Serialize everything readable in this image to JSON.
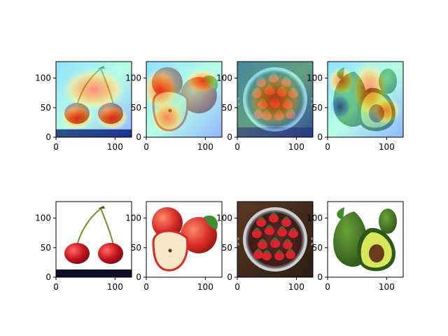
{
  "chart_data": {
    "type": "image-grid",
    "rows": 2,
    "cols": 4,
    "xlim": [
      0,
      128
    ],
    "ylim": [
      128,
      0
    ],
    "xticks": [
      0,
      100
    ],
    "yticks": [
      0,
      50,
      100
    ],
    "panels": [
      {
        "row": 0,
        "col": 0,
        "content": "cherries",
        "overlay": "heatmap"
      },
      {
        "row": 0,
        "col": 1,
        "content": "apples",
        "overlay": "heatmap"
      },
      {
        "row": 0,
        "col": 2,
        "content": "strawberries",
        "overlay": "heatmap"
      },
      {
        "row": 0,
        "col": 3,
        "content": "avocados",
        "overlay": "heatmap"
      },
      {
        "row": 1,
        "col": 0,
        "content": "cherries",
        "overlay": "none"
      },
      {
        "row": 1,
        "col": 1,
        "content": "apples",
        "overlay": "none"
      },
      {
        "row": 1,
        "col": 2,
        "content": "strawberries",
        "overlay": "none"
      },
      {
        "row": 1,
        "col": 3,
        "content": "avocados",
        "overlay": "none"
      }
    ]
  },
  "colors": {
    "heat_base": "#3a7bff",
    "heat_mid": "#00e0ff",
    "heat_warm": "#ffe14d",
    "heat_hot": "#ff3b1f",
    "cherry_red": "#c8141e",
    "stem": "#7a8a2a",
    "apple_red": "#d52a26",
    "leaf_green": "#3f8f2e",
    "strawberry_red": "#d8242f",
    "bowl_metal": "#9aa3a8",
    "wood_dark": "#3e2a1e",
    "avocado_skin": "#3d6b22",
    "avocado_flesh": "#d7e65a",
    "avocado_pit": "#6b3a1c"
  }
}
